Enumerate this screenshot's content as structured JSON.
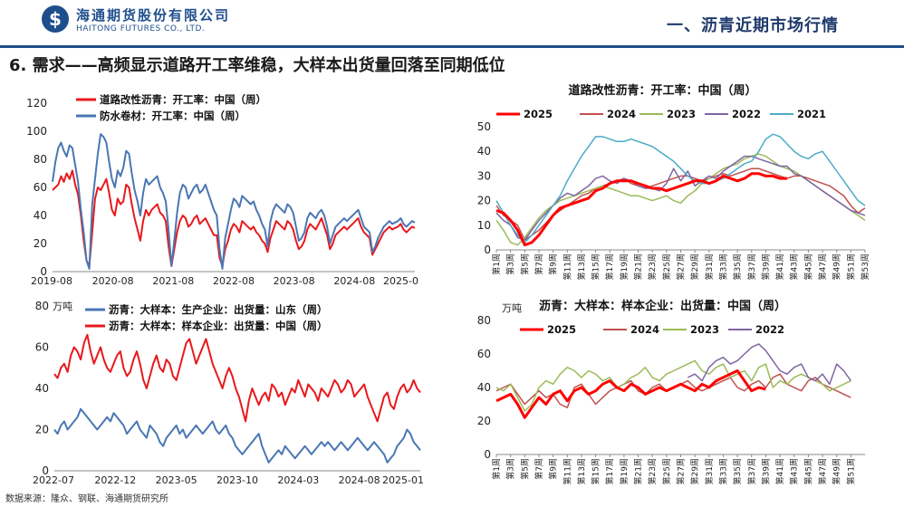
{
  "header": {
    "logo_char": "$",
    "logo_cn": "海通期货股份有限公司",
    "logo_en": "HAITONG FUTURES CO., LTD.",
    "section": "一、沥青近期市场行情"
  },
  "title": "6. 需求——高频显示道路开工率维稳，大样本出货量回落至同期低位",
  "source": "数据来源：隆众、钢联、海通期货研究所",
  "colors": {
    "brand": "#1f4e8c",
    "red": "#e8191c",
    "blue": "#4a77b4"
  },
  "chart_data": [
    {
      "id": "c1",
      "type": "line",
      "title": "",
      "ylabel": "",
      "ylim": [
        0,
        120
      ],
      "yticks": [
        0,
        20,
        40,
        60,
        80,
        100,
        120
      ],
      "x_tick_labels": [
        "2019-08",
        "2020-08",
        "2021-08",
        "2022-08",
        "2023-08",
        "2024-08",
        "2025-0"
      ],
      "legend_position": "top-left",
      "series": [
        {
          "name": "道路改性沥青：开工率：中国（周）",
          "color": "#e8191c",
          "values": [
            58,
            60,
            62,
            68,
            64,
            70,
            66,
            72,
            62,
            55,
            40,
            22,
            8,
            4,
            28,
            52,
            60,
            58,
            62,
            66,
            56,
            44,
            40,
            52,
            48,
            50,
            62,
            60,
            48,
            38,
            30,
            22,
            36,
            44,
            40,
            44,
            46,
            48,
            42,
            40,
            36,
            18,
            4,
            16,
            28,
            36,
            40,
            38,
            32,
            34,
            38,
            40,
            34,
            36,
            38,
            34,
            30,
            26,
            26,
            10,
            4,
            16,
            22,
            30,
            34,
            32,
            28,
            36,
            34,
            32,
            30,
            32,
            28,
            26,
            22,
            20,
            14,
            24,
            30,
            36,
            34,
            32,
            30,
            36,
            34,
            30,
            22,
            16,
            18,
            22,
            30,
            34,
            32,
            30,
            34,
            38,
            32,
            26,
            16,
            20,
            26,
            28,
            30,
            32,
            30,
            32,
            34,
            36,
            38,
            32,
            28,
            26,
            24,
            12,
            16,
            20,
            24,
            28,
            30,
            32,
            30,
            31,
            32,
            34,
            30,
            28,
            30,
            32,
            31
          ]
        },
        {
          "name": "防水卷材：开工率：中国（周）",
          "color": "#4a77b4",
          "values": [
            64,
            78,
            88,
            92,
            86,
            82,
            90,
            88,
            76,
            64,
            44,
            28,
            8,
            2,
            48,
            66,
            84,
            98,
            96,
            92,
            78,
            66,
            60,
            72,
            68,
            74,
            86,
            84,
            70,
            58,
            50,
            40,
            56,
            66,
            62,
            64,
            66,
            68,
            60,
            56,
            50,
            30,
            4,
            22,
            42,
            56,
            62,
            60,
            52,
            56,
            60,
            62,
            56,
            58,
            62,
            56,
            50,
            44,
            40,
            16,
            2,
            24,
            34,
            44,
            52,
            50,
            46,
            54,
            52,
            50,
            48,
            50,
            44,
            40,
            34,
            30,
            18,
            36,
            44,
            48,
            46,
            44,
            42,
            48,
            46,
            42,
            32,
            22,
            24,
            28,
            38,
            42,
            40,
            38,
            42,
            44,
            40,
            32,
            20,
            26,
            32,
            34,
            36,
            38,
            36,
            38,
            40,
            42,
            44,
            38,
            32,
            30,
            28,
            14,
            18,
            24,
            28,
            32,
            34,
            36,
            34,
            35,
            36,
            38,
            34,
            32,
            34,
            36,
            35
          ]
        }
      ]
    },
    {
      "id": "c2",
      "type": "line",
      "title": "道路改性沥青：开工率：中国（周）",
      "ylim": [
        0,
        50
      ],
      "yticks": [
        0,
        10,
        20,
        30,
        40,
        50
      ],
      "x_tick_labels": [
        "第1周",
        "第3周",
        "第5周",
        "第7周",
        "第9周",
        "第11周",
        "第13周",
        "第15周",
        "第17周",
        "第19周",
        "第21周",
        "第23周",
        "第25周",
        "第27周",
        "第29周",
        "第31周",
        "第33周",
        "第35周",
        "第37周",
        "第39周",
        "第41周",
        "第43周",
        "第45周",
        "第47周",
        "第49周",
        "第51周",
        "第53周"
      ],
      "legend_position": "top",
      "series": [
        {
          "name": "2025",
          "color": "#ff0000",
          "width": 3,
          "values": [
            16,
            15,
            12,
            8,
            2,
            3,
            6,
            10,
            14,
            17,
            18,
            19,
            20,
            21,
            24,
            25,
            27,
            28,
            28,
            28,
            27,
            26,
            25,
            25,
            24,
            25,
            26,
            27,
            28,
            28,
            27,
            28,
            30,
            29,
            28,
            29,
            31,
            31,
            30,
            30,
            29,
            29
          ]
        },
        {
          "name": "2024",
          "color": "#c0504d",
          "width": 1.5,
          "values": [
            18,
            14,
            12,
            10,
            4,
            6,
            8,
            11,
            14,
            16,
            18,
            20,
            22,
            23,
            25,
            26,
            27,
            28,
            29,
            27,
            26,
            25,
            26,
            27,
            28,
            29,
            30,
            30,
            29,
            28,
            29,
            30,
            31,
            30,
            31,
            32,
            33,
            33,
            32,
            31,
            30,
            29,
            30,
            30,
            29,
            28,
            27,
            26,
            24,
            22,
            18,
            15,
            17
          ]
        },
        {
          "name": "2023",
          "color": "#9bbb59",
          "width": 1.5,
          "values": [
            12,
            8,
            3,
            2,
            5,
            9,
            13,
            16,
            18,
            20,
            21,
            22,
            23,
            24,
            25,
            26,
            25,
            24,
            23,
            22,
            22,
            21,
            20,
            21,
            22,
            20,
            19,
            22,
            24,
            27,
            29,
            31,
            33,
            34,
            35,
            37,
            38,
            39,
            38,
            36,
            34,
            33,
            32,
            30,
            28,
            26,
            24,
            22,
            20,
            18,
            16,
            14,
            12
          ]
        },
        {
          "name": "2022",
          "color": "#8064a2",
          "width": 1.5,
          "values": [
            15,
            12,
            10,
            5,
            4,
            8,
            12,
            15,
            18,
            21,
            23,
            22,
            24,
            26,
            29,
            30,
            28,
            27,
            29,
            28,
            26,
            25,
            25,
            24,
            27,
            33,
            28,
            32,
            26,
            28,
            30,
            29,
            32,
            34,
            36,
            38,
            38,
            37,
            36,
            35,
            34,
            34,
            31,
            30,
            28,
            26,
            24,
            22,
            20,
            18,
            16,
            15,
            14
          ]
        },
        {
          "name": "2021",
          "color": "#4bacc6",
          "width": 1.5,
          "values": [
            20,
            15,
            10,
            6,
            3,
            6,
            10,
            14,
            18,
            22,
            28,
            33,
            38,
            42,
            46,
            46,
            45,
            44,
            44,
            45,
            44,
            43,
            42,
            40,
            38,
            36,
            33,
            30,
            28,
            27,
            27,
            28,
            29,
            31,
            33,
            35,
            36,
            40,
            45,
            47,
            46,
            43,
            40,
            38,
            37,
            39,
            40,
            36,
            32,
            28,
            24,
            20,
            18
          ]
        }
      ]
    },
    {
      "id": "c3",
      "type": "line",
      "title": "",
      "ylabel": "万吨",
      "ylim": [
        0,
        80
      ],
      "yticks": [
        0,
        20,
        40,
        60,
        80
      ],
      "x_tick_labels": [
        "2022-07",
        "2022-12",
        "2023-05",
        "2023-10",
        "2024-03",
        "2024-08",
        "2025-01"
      ],
      "legend_position": "top-left",
      "series": [
        {
          "name": "沥青：大样本：生产企业：出货量：山东（周）",
          "color": "#4a77b4",
          "values": [
            20,
            18,
            22,
            24,
            20,
            22,
            24,
            26,
            30,
            28,
            26,
            24,
            22,
            20,
            22,
            24,
            26,
            24,
            28,
            26,
            24,
            22,
            18,
            20,
            22,
            24,
            20,
            18,
            16,
            22,
            20,
            18,
            14,
            12,
            16,
            18,
            20,
            22,
            18,
            20,
            16,
            18,
            20,
            22,
            20,
            18,
            20,
            22,
            24,
            20,
            18,
            20,
            22,
            18,
            16,
            12,
            10,
            8,
            10,
            12,
            14,
            16,
            18,
            12,
            8,
            4,
            6,
            8,
            10,
            8,
            12,
            10,
            8,
            6,
            8,
            10,
            12,
            10,
            8,
            10,
            12,
            14,
            12,
            14,
            12,
            10,
            12,
            14,
            12,
            10,
            12,
            14,
            16,
            14,
            12,
            10,
            12,
            14,
            12,
            10,
            8,
            4,
            6,
            8,
            12,
            14,
            16,
            20,
            18,
            14,
            12,
            10
          ]
        },
        {
          "name": "沥青：大样本：样本企业：出货量：中国（周）",
          "color": "#e8191c",
          "values": [
            47,
            45,
            50,
            52,
            48,
            56,
            60,
            58,
            54,
            62,
            66,
            58,
            52,
            56,
            60,
            54,
            50,
            48,
            52,
            56,
            58,
            50,
            46,
            48,
            54,
            58,
            52,
            44,
            40,
            46,
            52,
            56,
            50,
            48,
            54,
            52,
            46,
            44,
            50,
            56,
            62,
            64,
            58,
            52,
            56,
            60,
            64,
            58,
            52,
            48,
            44,
            40,
            46,
            50,
            46,
            40,
            36,
            30,
            24,
            34,
            40,
            36,
            32,
            36,
            38,
            34,
            42,
            40,
            36,
            38,
            32,
            36,
            40,
            38,
            44,
            40,
            36,
            42,
            40,
            38,
            34,
            40,
            38,
            36,
            40,
            44,
            42,
            38,
            40,
            44,
            42,
            36,
            38,
            40,
            42,
            36,
            32,
            28,
            24,
            30,
            36,
            38,
            32,
            30,
            36,
            40,
            42,
            38,
            40,
            44,
            40,
            38
          ]
        }
      ]
    },
    {
      "id": "c4",
      "type": "line",
      "title": "沥青：大样本：样本企业：出货量：中国（周）",
      "ylabel": "万吨",
      "ylim": [
        0,
        80
      ],
      "yticks": [
        0,
        20,
        40,
        60,
        80
      ],
      "x_tick_labels": [
        "第1周",
        "第3周",
        "第5周",
        "第7周",
        "第9周",
        "第11周",
        "第13周",
        "第15周",
        "第17周",
        "第19周",
        "第21周",
        "第23周",
        "第25周",
        "第27周",
        "第29周",
        "第31周",
        "第33周",
        "第35周",
        "第37周",
        "第39周",
        "第41周",
        "第43周",
        "第45周",
        "第47周",
        "第49周",
        "第51周"
      ],
      "legend_position": "top",
      "series": [
        {
          "name": "2025",
          "color": "#ff0000",
          "width": 3,
          "values": [
            32,
            34,
            36,
            30,
            22,
            28,
            34,
            30,
            36,
            38,
            32,
            38,
            40,
            36,
            38,
            42,
            44,
            40,
            38,
            42,
            40,
            36,
            38,
            40,
            38,
            40,
            42,
            40,
            38,
            42,
            40,
            44,
            46,
            48,
            50,
            44,
            38,
            40,
            39
          ]
        },
        {
          "name": "2024",
          "color": "#c0504d",
          "width": 1.5,
          "values": [
            38,
            40,
            42,
            36,
            30,
            34,
            38,
            34,
            36,
            30,
            28,
            40,
            42,
            36,
            30,
            34,
            38,
            40,
            42,
            44,
            38,
            36,
            40,
            42,
            38,
            40,
            42,
            44,
            40,
            38,
            40,
            42,
            44,
            46,
            40,
            38,
            42,
            44,
            40,
            46,
            48,
            42,
            40,
            38,
            44,
            46,
            42,
            40,
            38,
            36,
            34
          ]
        },
        {
          "name": "2023",
          "color": "#9bbb59",
          "width": 1.5,
          "values": [
            40,
            38,
            42,
            34,
            26,
            30,
            40,
            44,
            42,
            48,
            52,
            50,
            46,
            50,
            48,
            44,
            46,
            40,
            42,
            46,
            48,
            52,
            46,
            44,
            48,
            50,
            52,
            54,
            56,
            50,
            48,
            52,
            54,
            46,
            48,
            50,
            44,
            52,
            54,
            40,
            44,
            42,
            46,
            48,
            46,
            44,
            42,
            38,
            40,
            42,
            44
          ]
        },
        {
          "name": "2022",
          "color": "#8064a2",
          "width": 1.5,
          "values": [
            null,
            null,
            null,
            null,
            null,
            null,
            null,
            null,
            null,
            null,
            null,
            null,
            null,
            null,
            null,
            null,
            null,
            null,
            null,
            null,
            null,
            null,
            null,
            null,
            null,
            null,
            null,
            46,
            48,
            44,
            52,
            56,
            58,
            54,
            56,
            60,
            64,
            66,
            62,
            56,
            50,
            48,
            52,
            54,
            46,
            44,
            48,
            42,
            54,
            50,
            44
          ]
        }
      ]
    }
  ]
}
